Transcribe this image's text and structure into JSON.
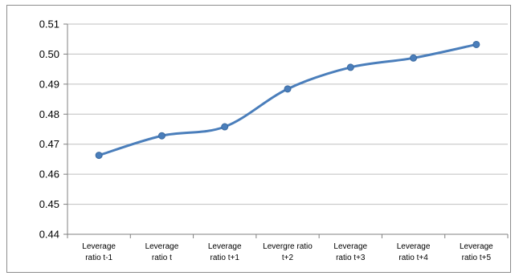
{
  "chart_data": {
    "type": "line",
    "categories": [
      [
        "Leverage",
        "ratio t-1"
      ],
      [
        "Leverage",
        "ratio t"
      ],
      [
        "Leverage",
        "ratio t+1"
      ],
      [
        "Levergre ratio",
        "t+2"
      ],
      [
        "Leverage",
        "ratio t+3"
      ],
      [
        "Leverage",
        "ratio t+4"
      ],
      [
        "Leverage",
        "ratio t+5"
      ]
    ],
    "series": [
      {
        "values": [
          0.4663,
          0.4728,
          0.4758,
          0.4884,
          0.4956,
          0.4987,
          0.5032
        ]
      }
    ],
    "ylim": [
      0.44,
      0.51
    ],
    "yticks": [
      "0.44",
      "0.45",
      "0.46",
      "0.47",
      "0.48",
      "0.49",
      "0.50",
      "0.51"
    ],
    "grid": true,
    "line_color": "#4a7ebb",
    "marker_color": "#4a7ebb",
    "grid_color": "#bfbfbf",
    "axis_color": "#808080"
  }
}
